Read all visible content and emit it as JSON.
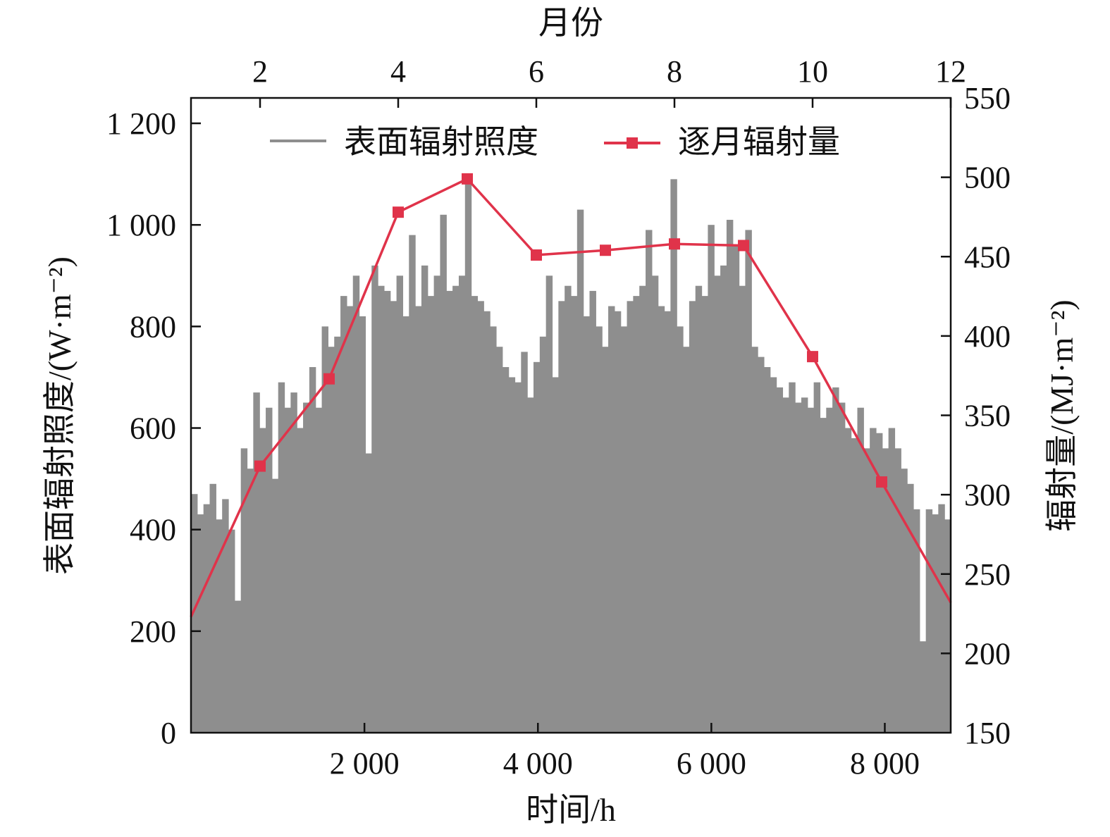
{
  "chart_data": {
    "type": "bar+line",
    "title": "",
    "xlabel": "时间/h",
    "x2label": "月份",
    "ylabel": "表面辐射照度/(W·m⁻²)",
    "y2label": "辐射量/(MJ·m⁻²)",
    "xlim": [
      0,
      8760
    ],
    "x2lim": [
      1,
      12
    ],
    "ylim": [
      0,
      1250
    ],
    "y2lim": [
      150,
      550
    ],
    "xticks": [
      2000,
      4000,
      6000,
      8000
    ],
    "xtick_labels": [
      "2 000",
      "4 000",
      "6 000",
      "8 000"
    ],
    "x2ticks": [
      2,
      4,
      6,
      8,
      10,
      12
    ],
    "x2tick_labels": [
      "2",
      "4",
      "6",
      "8",
      "10",
      "12"
    ],
    "yticks": [
      0,
      200,
      400,
      600,
      800,
      1000,
      1200
    ],
    "ytick_labels": [
      "0",
      "200",
      "400",
      "600",
      "800",
      "1 000",
      "1 200"
    ],
    "y2ticks": [
      150,
      200,
      250,
      300,
      350,
      400,
      450,
      500,
      550
    ],
    "y2tick_labels": [
      "150",
      "200",
      "250",
      "300",
      "350",
      "400",
      "450",
      "500",
      "550"
    ],
    "grid": false,
    "legend_position": "top",
    "series": [
      {
        "name": "表面辐射照度",
        "type": "bar",
        "axis": "left",
        "color": "#8e8e8e",
        "note": "hourly irradiance, approximate peak envelope sampled evenly over 0–8760 h",
        "values": [
          470,
          430,
          450,
          490,
          420,
          460,
          400,
          260,
          560,
          520,
          670,
          600,
          640,
          500,
          690,
          640,
          670,
          600,
          650,
          720,
          640,
          800,
          760,
          780,
          860,
          840,
          900,
          820,
          550,
          920,
          880,
          870,
          850,
          900,
          820,
          980,
          840,
          920,
          860,
          900,
          1020,
          870,
          880,
          900,
          1080,
          860,
          850,
          830,
          800,
          760,
          720,
          700,
          690,
          750,
          660,
          730,
          780,
          900,
          700,
          850,
          880,
          860,
          1030,
          820,
          870,
          800,
          760,
          840,
          830,
          800,
          850,
          860,
          880,
          990,
          900,
          840,
          830,
          1090,
          800,
          760,
          850,
          880,
          860,
          1000,
          900,
          920,
          1010,
          960,
          880,
          990,
          760,
          740,
          720,
          700,
          680,
          660,
          690,
          650,
          660,
          640,
          690,
          620,
          640,
          680,
          650,
          600,
          580,
          640,
          560,
          600,
          590,
          560,
          600,
          560,
          520,
          490,
          440,
          180,
          440,
          430,
          450,
          420
        ]
      },
      {
        "name": "逐月辐射量",
        "type": "line",
        "axis": "right",
        "color": "#e0334a",
        "x": [
          1,
          2,
          3,
          4,
          5,
          6,
          7,
          8,
          9,
          10,
          11,
          12
        ],
        "values": [
          223,
          318,
          373,
          478,
          499,
          451,
          454,
          458,
          457,
          387,
          308,
          232
        ],
        "markers": [
          false,
          true,
          true,
          true,
          true,
          true,
          true,
          true,
          true,
          true,
          true,
          false
        ]
      }
    ]
  }
}
